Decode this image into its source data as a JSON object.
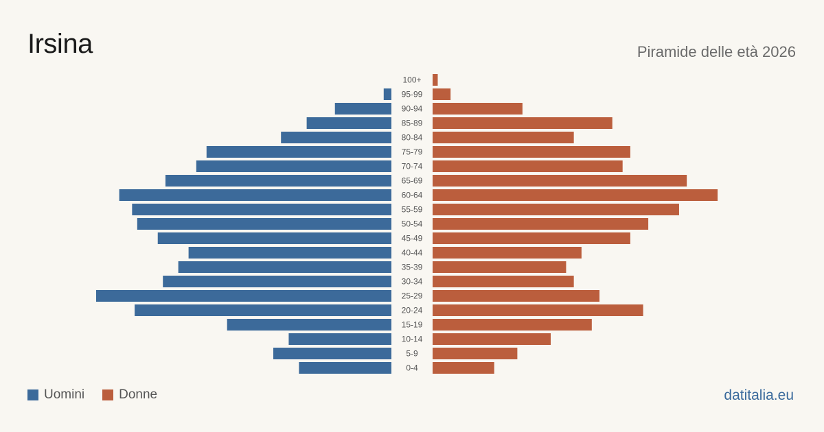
{
  "title": "Irsina",
  "subtitle": "Piramide delle età 2026",
  "brand": "datitalia.eu",
  "colors": {
    "male": "#3c6a9a",
    "female": "#bb5e3d"
  },
  "legend": {
    "male_label": "Uomini",
    "female_label": "Donne"
  },
  "chart_data": {
    "type": "bar",
    "orientation": "horizontal",
    "layout": "population-pyramid",
    "categories": [
      "100+",
      "95-99",
      "90-94",
      "85-89",
      "80-84",
      "75-79",
      "70-74",
      "65-69",
      "60-64",
      "55-59",
      "50-54",
      "45-49",
      "40-44",
      "35-39",
      "30-34",
      "25-29",
      "20-24",
      "15-19",
      "10-14",
      "5-9",
      "0-4"
    ],
    "series": [
      {
        "name": "Uomini",
        "values": [
          0,
          3,
          22,
          33,
          43,
          72,
          76,
          88,
          106,
          101,
          99,
          91,
          79,
          83,
          89,
          115,
          100,
          64,
          40,
          46,
          36
        ]
      },
      {
        "name": "Donne",
        "values": [
          2,
          7,
          35,
          70,
          55,
          77,
          74,
          99,
          111,
          96,
          84,
          77,
          58,
          52,
          55,
          65,
          82,
          62,
          46,
          33,
          24
        ]
      }
    ],
    "xlim": [
      0,
      115
    ]
  }
}
